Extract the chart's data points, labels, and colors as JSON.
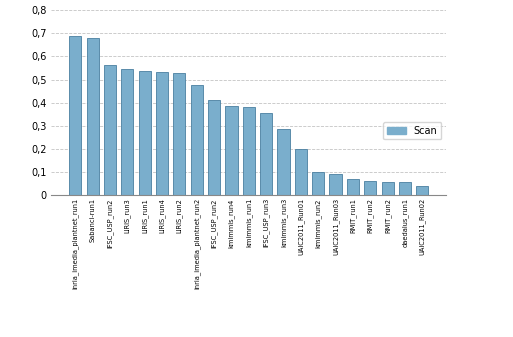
{
  "categories": [
    "inria_imedia_plantnet_run1",
    "Sabanci-run1",
    "IFSC_USP_run2",
    "LIRIS_run3",
    "LIRIS_run1",
    "LIRIS_run4",
    "LIRIS_run2",
    "inria_imedia_plantnet_run2",
    "IFSC_USP_run2",
    "kmimmis_run4",
    "kmimmis_run1",
    "IFSC_USP_run3",
    "kmimmis_run3",
    "UAIC2011_Run01",
    "kmimmis_run2",
    "UAIC2011_Run03",
    "RMIT_run1",
    "RMIT_run2",
    "RMIT_run2",
    "daedalus_run1",
    "UAIC2011_Run02"
  ],
  "values": [
    0.688,
    0.681,
    0.562,
    0.547,
    0.538,
    0.535,
    0.53,
    0.478,
    0.413,
    0.385,
    0.383,
    0.357,
    0.286,
    0.202,
    0.1,
    0.093,
    0.071,
    0.062,
    0.06,
    0.058,
    0.041
  ],
  "bar_color": "#7aaecc",
  "bar_edge_color": "#4a7fa0",
  "legend_label": "Scan",
  "legend_color": "#7aaecc",
  "ylim": [
    0,
    0.8
  ],
  "yticks": [
    0,
    0.1,
    0.2,
    0.3,
    0.4,
    0.5,
    0.6,
    0.7,
    0.8
  ],
  "ytick_labels": [
    "0",
    "0,1",
    "0,2",
    "0,3",
    "0,4",
    "0,5",
    "0,6",
    "0,7",
    "0,8"
  ],
  "background_color": "#ffffff",
  "grid_color": "#aaaaaa"
}
